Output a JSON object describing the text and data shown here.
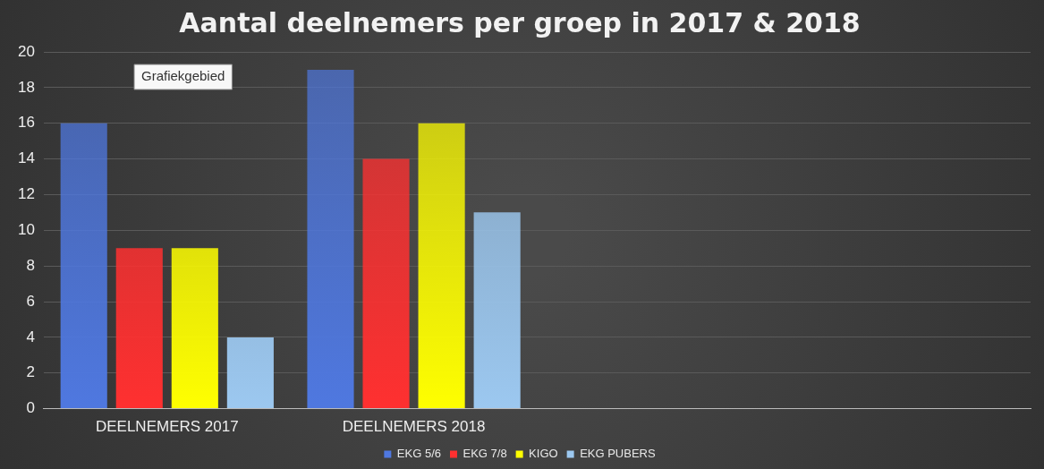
{
  "chart_data": {
    "type": "bar",
    "title": "Aantal deelnemers per groep in 2017 & 2018",
    "categories": [
      "DEELNEMERS 2017",
      "DEELNEMERS 2018",
      null,
      null
    ],
    "series": [
      {
        "name": "EKG 5/6",
        "color": "#4f78e0",
        "values": [
          16,
          19,
          null,
          null
        ]
      },
      {
        "name": "EKG 7/8",
        "color": "#ff3030",
        "values": [
          9,
          14,
          null,
          null
        ]
      },
      {
        "name": "KIGO",
        "color": "#ffff00",
        "values": [
          9,
          16,
          null,
          null
        ]
      },
      {
        "name": "EKG PUBERS",
        "color": "#9cc8f0",
        "values": [
          4,
          11,
          null,
          null
        ]
      }
    ],
    "ylim": [
      0,
      20
    ],
    "yticks": [
      0,
      2,
      4,
      6,
      8,
      10,
      12,
      14,
      16,
      18,
      20
    ],
    "grid": "y",
    "legend": "bottom",
    "annotations": [
      "Grafiekgebied"
    ]
  }
}
